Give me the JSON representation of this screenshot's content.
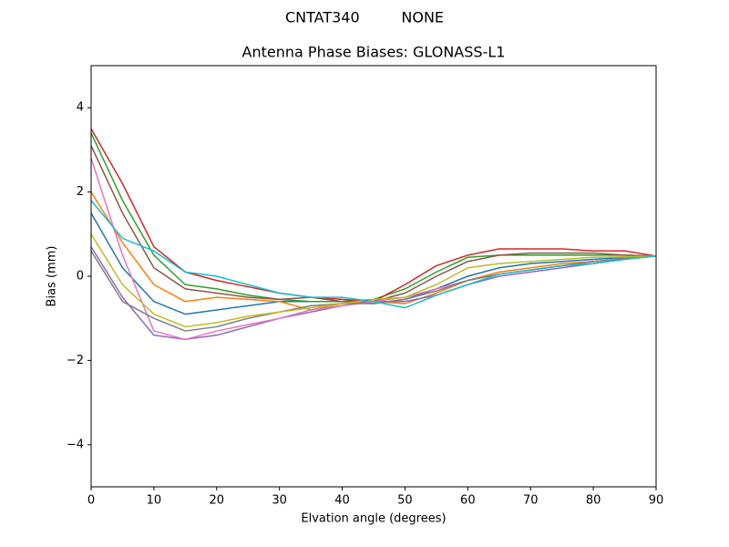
{
  "chart_data": {
    "type": "line",
    "suptitle": "CNTAT340         NONE",
    "title": "Antenna Phase Biases: GLONASS-L1",
    "xlabel": "Elvation angle (degrees)",
    "ylabel": "Bias (mm)",
    "x": [
      0,
      5,
      10,
      15,
      20,
      25,
      30,
      35,
      40,
      45,
      50,
      55,
      60,
      65,
      70,
      75,
      80,
      85,
      90
    ],
    "xlim": [
      0,
      90
    ],
    "xticks": [
      0,
      10,
      20,
      30,
      40,
      50,
      60,
      70,
      80,
      90
    ],
    "ylim": [
      -5,
      5
    ],
    "yticks": [
      {
        "value": -4,
        "label": "−4"
      },
      {
        "value": -2,
        "label": "−2"
      },
      0,
      2,
      4
    ],
    "grid": false,
    "series": [
      {
        "color": "#1f77b4",
        "values": [
          1.5,
          0.2,
          -0.6,
          -0.9,
          -0.8,
          -0.7,
          -0.6,
          -0.6,
          -0.6,
          -0.65,
          -0.55,
          -0.3,
          0.0,
          0.2,
          0.3,
          0.35,
          0.4,
          0.45,
          0.48
        ]
      },
      {
        "color": "#ff7f0e",
        "values": [
          2.0,
          0.8,
          -0.2,
          -0.6,
          -0.5,
          -0.55,
          -0.6,
          -0.8,
          -0.65,
          -0.6,
          -0.65,
          -0.4,
          -0.1,
          0.1,
          0.2,
          0.3,
          0.35,
          0.42,
          0.48
        ]
      },
      {
        "color": "#2ca02c",
        "values": [
          3.4,
          1.8,
          0.5,
          -0.2,
          -0.3,
          -0.45,
          -0.55,
          -0.6,
          -0.6,
          -0.55,
          -0.3,
          0.1,
          0.45,
          0.5,
          0.5,
          0.5,
          0.5,
          0.5,
          0.48
        ]
      },
      {
        "color": "#d62728",
        "values": [
          3.5,
          2.2,
          0.7,
          0.1,
          -0.1,
          -0.25,
          -0.4,
          -0.5,
          -0.55,
          -0.6,
          -0.2,
          0.25,
          0.5,
          0.65,
          0.65,
          0.65,
          0.6,
          0.6,
          0.48
        ]
      },
      {
        "color": "#9467bd",
        "values": [
          0.7,
          -0.5,
          -1.4,
          -1.5,
          -1.4,
          -1.2,
          -1.0,
          -0.85,
          -0.7,
          -0.6,
          -0.6,
          -0.45,
          -0.2,
          0.0,
          0.1,
          0.2,
          0.3,
          0.4,
          0.48
        ]
      },
      {
        "color": "#8c564b",
        "values": [
          3.1,
          1.5,
          0.2,
          -0.3,
          -0.4,
          -0.5,
          -0.55,
          -0.5,
          -0.6,
          -0.6,
          -0.4,
          0.0,
          0.35,
          0.5,
          0.55,
          0.55,
          0.55,
          0.5,
          0.48
        ]
      },
      {
        "color": "#e377c2",
        "values": [
          2.8,
          0.5,
          -1.3,
          -1.5,
          -1.3,
          -1.15,
          -1.0,
          -0.8,
          -0.7,
          -0.6,
          -0.5,
          -0.3,
          -0.1,
          0.05,
          0.15,
          0.25,
          0.35,
          0.42,
          0.48
        ]
      },
      {
        "color": "#7f7f7f",
        "values": [
          0.6,
          -0.6,
          -1.0,
          -1.3,
          -1.2,
          -1.0,
          -0.85,
          -0.7,
          -0.65,
          -0.65,
          -0.55,
          -0.35,
          -0.1,
          0.05,
          0.15,
          0.25,
          0.35,
          0.42,
          0.48
        ]
      },
      {
        "color": "#bcbd22",
        "values": [
          1.0,
          -0.2,
          -0.9,
          -1.2,
          -1.1,
          -0.95,
          -0.85,
          -0.75,
          -0.65,
          -0.55,
          -0.5,
          -0.2,
          0.2,
          0.3,
          0.35,
          0.4,
          0.45,
          0.46,
          0.48
        ]
      },
      {
        "color": "#17becf",
        "values": [
          1.8,
          0.9,
          0.6,
          0.1,
          0.0,
          -0.2,
          -0.4,
          -0.5,
          -0.5,
          -0.6,
          -0.75,
          -0.45,
          -0.2,
          0.05,
          0.15,
          0.25,
          0.3,
          0.4,
          0.48
        ]
      }
    ]
  }
}
